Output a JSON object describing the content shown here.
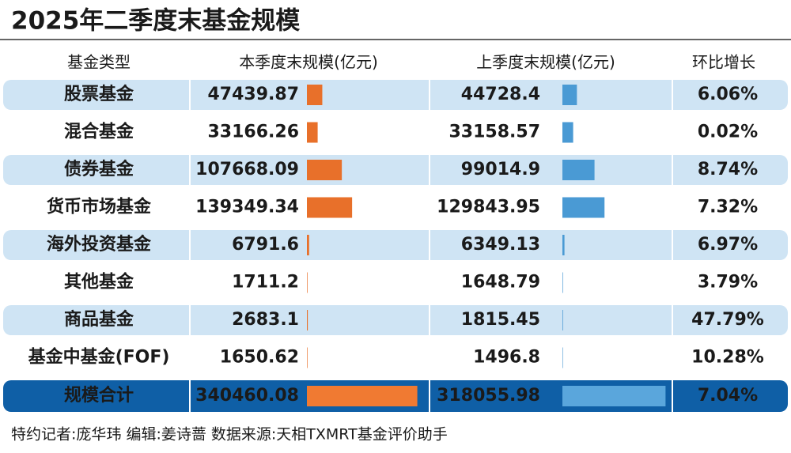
{
  "title": "2025年二季度末基金规模",
  "table": {
    "columns": [
      "基金类型",
      "本季度末规模(亿元)",
      "上季度末规模(亿元)",
      "环比增长"
    ],
    "rows": [
      {
        "name": "股票基金",
        "current": 47439.87,
        "previous": 44728.4,
        "growth": "6.06%"
      },
      {
        "name": "混合基金",
        "current": 33166.26,
        "previous": 33158.57,
        "growth": "0.02%"
      },
      {
        "name": "债券基金",
        "current": 107668.09,
        "previous": 99014.9,
        "growth": "8.74%"
      },
      {
        "name": "货币市场基金",
        "current": 139349.34,
        "previous": 129843.95,
        "growth": "7.32%"
      },
      {
        "name": "海外投资基金",
        "current": 6791.6,
        "previous": 6349.13,
        "growth": "6.97%"
      },
      {
        "name": "其他基金",
        "current": 1711.2,
        "previous": 1648.79,
        "growth": "3.79%"
      },
      {
        "name": "商品基金",
        "current": 2683.1,
        "previous": 1815.45,
        "growth": "47.79%"
      },
      {
        "name": "基金中基金(FOF)",
        "current": 1650.62,
        "previous": 1496.8,
        "growth": "10.28%"
      }
    ],
    "total": {
      "name": "规模合计",
      "current": 340460.08,
      "previous": 318055.98,
      "growth": "7.04%"
    }
  },
  "footer": "特约记者:庞华玮  编辑:姜诗蔷  数据来源:天相TXMRT基金评价助手"
}
